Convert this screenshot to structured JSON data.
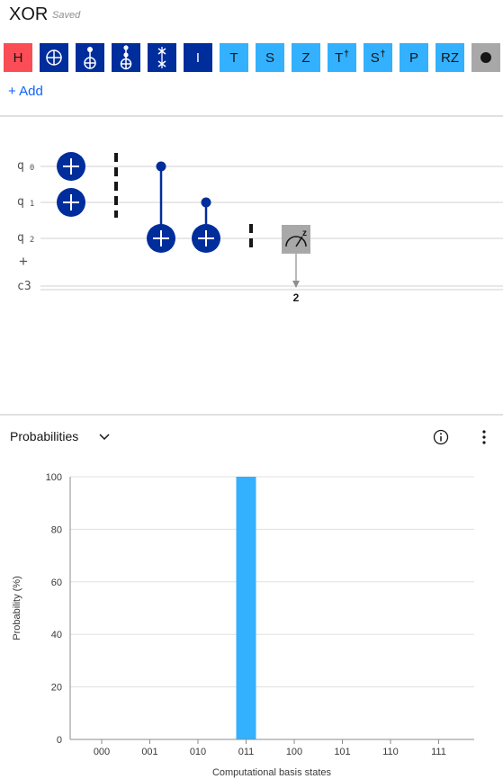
{
  "header": {
    "title": "XOR",
    "status": "Saved"
  },
  "palette": {
    "gates": [
      {
        "label": "H",
        "style": "red",
        "kind": "text"
      },
      {
        "label": "",
        "style": "dark",
        "kind": "not-icon"
      },
      {
        "label": "",
        "style": "dark",
        "kind": "cnot-icon"
      },
      {
        "label": "",
        "style": "dark",
        "kind": "toffoli-icon"
      },
      {
        "label": "",
        "style": "dark",
        "kind": "swap-icon"
      },
      {
        "label": "I",
        "style": "dark",
        "kind": "text"
      },
      {
        "label": "T",
        "style": "light",
        "kind": "text"
      },
      {
        "label": "S",
        "style": "light",
        "kind": "text"
      },
      {
        "label": "Z",
        "style": "light",
        "kind": "text"
      },
      {
        "label": "T",
        "sup": "†",
        "style": "light",
        "kind": "text"
      },
      {
        "label": "S",
        "sup": "†",
        "style": "light",
        "kind": "text"
      },
      {
        "label": "P",
        "style": "light",
        "kind": "text"
      },
      {
        "label": "RZ",
        "style": "light",
        "kind": "text"
      },
      {
        "label": "",
        "style": "gray",
        "kind": "dot-icon"
      }
    ],
    "add_label": "+ Add"
  },
  "circuit": {
    "qubits": [
      {
        "name": "q",
        "index": "0"
      },
      {
        "name": "q",
        "index": "1"
      },
      {
        "name": "q",
        "index": "2"
      }
    ],
    "add_qubit_label": "+",
    "classical_register": "c3",
    "measure_target": "2",
    "measure_basis": "z"
  },
  "probabilities": {
    "selector_label": "Probabilities",
    "colors": {
      "bar": "#33b1ff",
      "gate_dark": "#002d9c"
    }
  },
  "chart_data": {
    "type": "bar",
    "categories": [
      "000",
      "001",
      "010",
      "011",
      "100",
      "101",
      "110",
      "111"
    ],
    "values": [
      0,
      0,
      0,
      100,
      0,
      0,
      0,
      0
    ],
    "xlabel": "Computational basis states",
    "ylabel": "Probability (%)",
    "ylim": [
      0,
      100
    ],
    "yticks": [
      0,
      20,
      40,
      60,
      80,
      100
    ],
    "grid": "horizontal"
  }
}
